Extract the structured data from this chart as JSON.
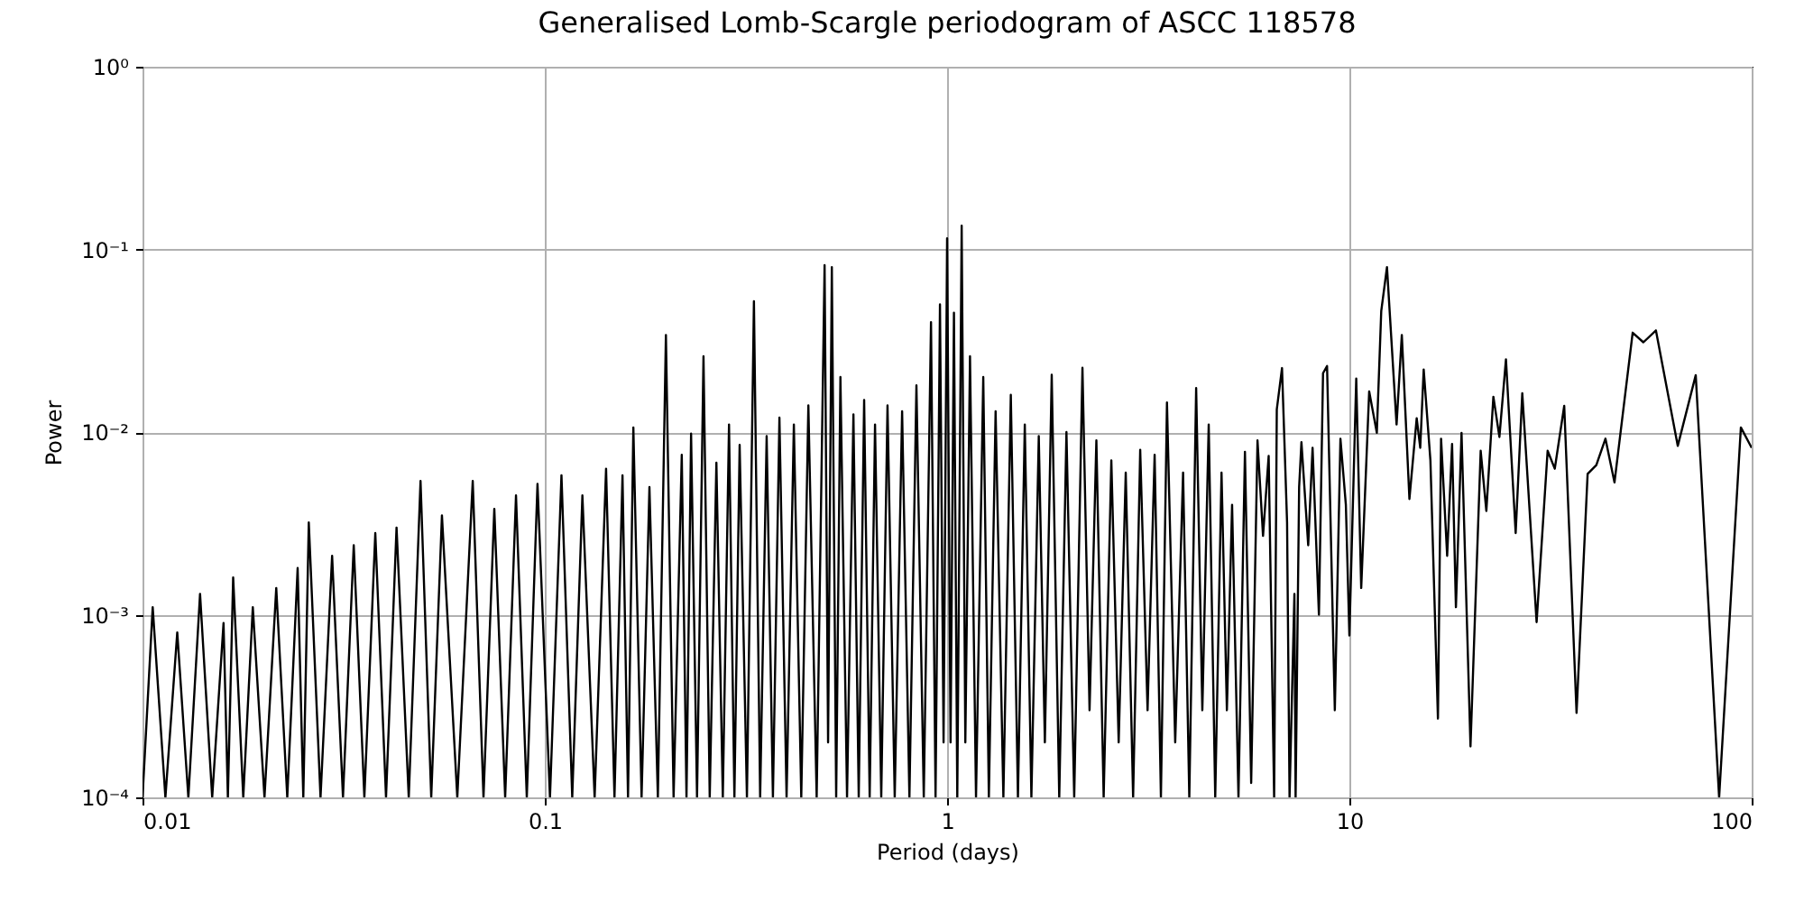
{
  "chart_data": {
    "type": "line",
    "title": "Generalised Lomb-Scargle periodogram of ASCC 118578",
    "xlabel": "Period (days)",
    "ylabel": "Power",
    "log": "xy",
    "grid": true,
    "legend": false,
    "line_style": "solid",
    "marker": "none",
    "xlim": [
      0.01,
      100
    ],
    "xticks": [
      0.01,
      0.1,
      1,
      10,
      100
    ],
    "ylim": [
      0.0001,
      1
    ],
    "yticks": [
      {
        "value": 0.0001,
        "label": "10⁻⁴"
      },
      {
        "value": 0.001,
        "label": "10⁻³"
      },
      {
        "value": 0.01,
        "label": "10⁻²"
      },
      {
        "value": 0.1,
        "label": "10⁻¹"
      },
      {
        "value": 1,
        "label": "10⁰"
      }
    ],
    "series": [
      {
        "color": "#000000",
        "x": [
          0.01,
          0.0106,
          0.0114,
          0.0122,
          0.013,
          0.0139,
          0.0149,
          0.0159,
          0.0163,
          0.0168,
          0.0178,
          0.0188,
          0.0201,
          0.0215,
          0.0229,
          0.0243,
          0.0251,
          0.0259,
          0.0277,
          0.0296,
          0.0315,
          0.0335,
          0.0356,
          0.0379,
          0.0403,
          0.0428,
          0.0459,
          0.0491,
          0.0522,
          0.0555,
          0.0606,
          0.0662,
          0.0704,
          0.0749,
          0.0797,
          0.0848,
          0.0902,
          0.0959,
          0.103,
          0.11,
          0.117,
          0.124,
          0.133,
          0.142,
          0.149,
          0.156,
          0.161,
          0.166,
          0.174,
          0.182,
          0.191,
          0.2,
          0.209,
          0.219,
          0.225,
          0.231,
          0.239,
          0.248,
          0.257,
          0.267,
          0.277,
          0.287,
          0.296,
          0.305,
          0.318,
          0.331,
          0.343,
          0.356,
          0.369,
          0.383,
          0.399,
          0.416,
          0.434,
          0.452,
          0.474,
          0.496,
          0.506,
          0.517,
          0.53,
          0.543,
          0.564,
          0.585,
          0.603,
          0.622,
          0.642,
          0.662,
          0.686,
          0.711,
          0.741,
          0.773,
          0.806,
          0.839,
          0.875,
          0.912,
          0.936,
          0.96,
          0.98,
          1.0,
          1.02,
          1.04,
          1.06,
          1.087,
          1.11,
          1.14,
          1.18,
          1.23,
          1.27,
          1.32,
          1.38,
          1.44,
          1.5,
          1.56,
          1.62,
          1.69,
          1.75,
          1.82,
          1.9,
          1.98,
          2.07,
          2.17,
          2.26,
          2.35,
          2.45,
          2.56,
          2.67,
          2.78,
          2.9,
          3.02,
          3.15,
          3.28,
          3.4,
          3.52,
          3.69,
          3.86,
          4.0,
          4.16,
          4.31,
          4.47,
          4.64,
          4.81,
          4.96,
          5.11,
          5.3,
          5.5,
          5.7,
          5.91,
          6.1,
          6.3,
          6.5,
          6.6,
          6.8,
          7.0,
          7.1,
          7.3,
          7.35,
          7.5,
          7.6,
          7.9,
          8.1,
          8.4,
          8.6,
          8.8,
          9.2,
          9.5,
          9.8,
          10,
          10.4,
          10.7,
          11.2,
          11.7,
          12.0,
          12.4,
          13.1,
          13.5,
          14.1,
          14.7,
          15.0,
          15.3,
          15.9,
          16.6,
          16.9,
          17.5,
          18.0,
          18.4,
          19.0,
          20.0,
          21.2,
          21.9,
          22.8,
          23.6,
          24.5,
          25.9,
          26.9,
          29.2,
          31.1,
          32.4,
          34.2,
          36.7,
          39.1,
          41.1,
          43.3,
          45.6,
          50.6,
          53.8,
          57.8,
          65.5,
          72.6,
          83.0,
          94.0,
          100
        ],
        "values": [
          0.0001,
          0.0011,
          0.0001,
          0.0008,
          0.0001,
          0.0013,
          0.0001,
          0.0009,
          0.0001,
          0.0016,
          0.0001,
          0.0011,
          0.0001,
          0.0014,
          0.0001,
          0.0018,
          0.0001,
          0.0032,
          0.0001,
          0.0021,
          0.0001,
          0.0024,
          0.0001,
          0.0028,
          0.0001,
          0.003,
          0.0001,
          0.0054,
          0.0001,
          0.0035,
          0.0001,
          0.0054,
          0.0001,
          0.0038,
          0.0001,
          0.0045,
          0.0001,
          0.0052,
          0.0001,
          0.0058,
          0.0001,
          0.0045,
          0.0001,
          0.0063,
          0.0001,
          0.0058,
          0.0001,
          0.0106,
          0.0001,
          0.005,
          0.0001,
          0.034,
          0.0001,
          0.0075,
          0.0001,
          0.0098,
          0.0001,
          0.026,
          0.0001,
          0.0068,
          0.0001,
          0.011,
          0.0001,
          0.0085,
          0.0001,
          0.052,
          0.0001,
          0.0095,
          0.0001,
          0.012,
          0.0001,
          0.011,
          0.0001,
          0.014,
          0.0001,
          0.082,
          0.0002,
          0.08,
          0.0001,
          0.02,
          0.0001,
          0.0125,
          0.0001,
          0.015,
          0.0001,
          0.011,
          0.0001,
          0.014,
          0.0001,
          0.013,
          0.0001,
          0.018,
          0.0001,
          0.04,
          0.0001,
          0.05,
          0.0002,
          0.115,
          0.0002,
          0.045,
          0.0001,
          0.135,
          0.0002,
          0.026,
          0.0001,
          0.02,
          0.0001,
          0.013,
          0.0001,
          0.016,
          0.0001,
          0.011,
          0.0001,
          0.0095,
          0.0002,
          0.0206,
          0.0001,
          0.01,
          0.0001,
          0.0225,
          0.0003,
          0.009,
          0.0001,
          0.007,
          0.0002,
          0.006,
          0.0001,
          0.008,
          0.0003,
          0.0075,
          0.0001,
          0.0145,
          0.0002,
          0.006,
          0.0001,
          0.0174,
          0.0003,
          0.011,
          0.0001,
          0.006,
          0.0003,
          0.004,
          0.0001,
          0.0078,
          0.00012,
          0.009,
          0.0027,
          0.0074,
          0.0001,
          0.0133,
          0.0224,
          0.0032,
          0.0001,
          0.0013,
          0.0001,
          0.005,
          0.0088,
          0.0024,
          0.0082,
          0.001,
          0.021,
          0.023,
          0.0003,
          0.0092,
          0.004,
          0.00077,
          0.0196,
          0.0014,
          0.0167,
          0.0099,
          0.046,
          0.08,
          0.011,
          0.034,
          0.0043,
          0.0119,
          0.0082,
          0.022,
          0.007,
          0.00027,
          0.0092,
          0.0021,
          0.0086,
          0.0011,
          0.0099,
          0.00019,
          0.0079,
          0.0037,
          0.0156,
          0.0094,
          0.025,
          0.0028,
          0.0163,
          0.00091,
          0.0079,
          0.0063,
          0.0139,
          0.00029,
          0.0059,
          0.0066,
          0.0092,
          0.0053,
          0.035,
          0.031,
          0.036,
          0.0084,
          0.0205,
          0.0001,
          0.0106,
          0.0082
        ]
      }
    ]
  }
}
